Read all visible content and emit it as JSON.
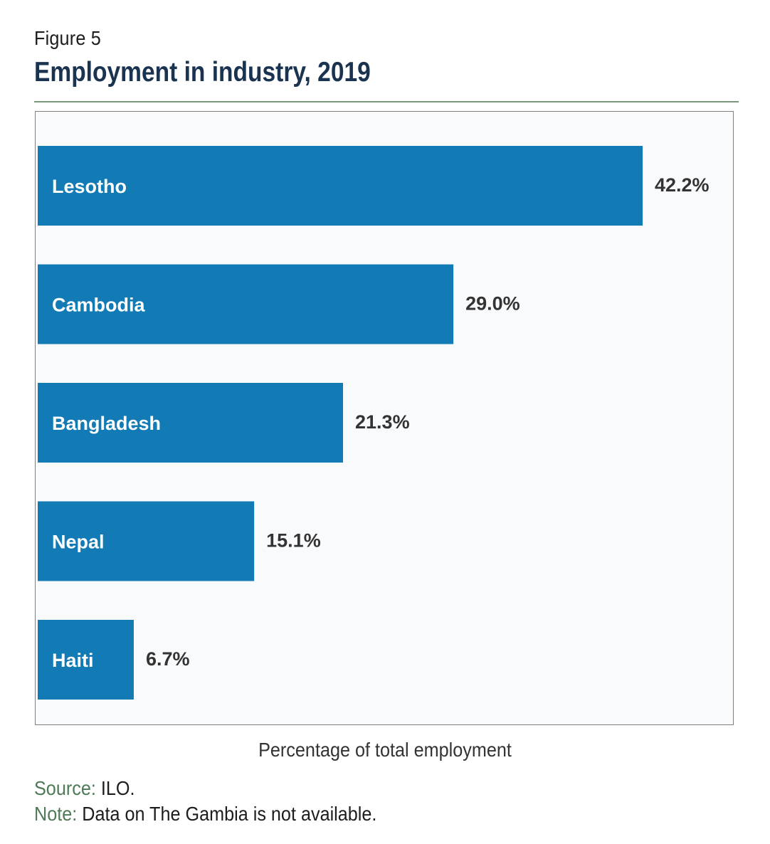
{
  "figure_label": "Figure 5",
  "footer": {
    "source_key": "Source:",
    "source_text": " ILO.",
    "note_key": "Note:",
    "note_text": " Data on The Gambia is not available."
  },
  "colors": {
    "bar": "#127bb5",
    "title": "#1a3350",
    "accent_green": "#4e7a56"
  },
  "chart_data": {
    "type": "bar",
    "orientation": "horizontal",
    "title": "Employment in industry, 2019",
    "xlabel": "Percentage  of total employment",
    "ylabel": "",
    "xlim": [
      0,
      42.2
    ],
    "grid": false,
    "legend": "none",
    "categories": [
      "Lesotho",
      "Cambodia",
      "Bangladesh",
      "Nepal",
      "Haiti"
    ],
    "values": [
      42.2,
      29.0,
      21.3,
      15.1,
      6.7
    ],
    "value_labels": [
      "42.2%",
      "29.0%",
      "21.3%",
      "15.1%",
      "6.7%"
    ]
  }
}
